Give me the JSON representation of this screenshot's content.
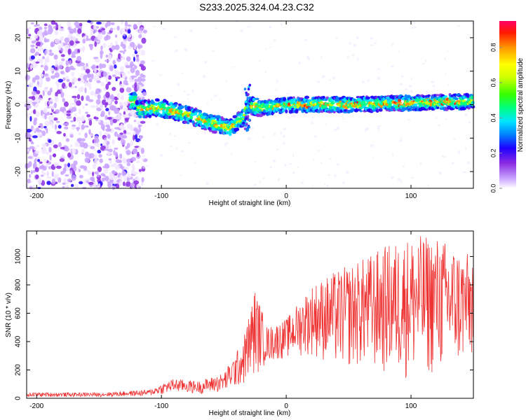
{
  "title": "S233.2025.324.04.23.C32",
  "colors": {
    "snr_line": "#ee3333",
    "spectrogram_cmap": [
      "#ffffff",
      "#c9a3ff",
      "#8a2be2",
      "#5a00ff",
      "#0000ff",
      "#00bfff",
      "#00ffcc",
      "#00ff00",
      "#ffff00",
      "#ff8c00",
      "#ff0000",
      "#ff0066"
    ]
  },
  "chart_data": [
    {
      "type": "heatmap",
      "name": "spectrogram",
      "xlabel": "Height of straight line (km)",
      "ylabel": "Frequency (Hz)",
      "xlim": [
        -208,
        150
      ],
      "ylim": [
        -25,
        25
      ],
      "xticks": [
        -200,
        -100,
        0,
        100
      ],
      "yticks": [
        -20,
        -10,
        0,
        10,
        20
      ],
      "description_points": {
        "ridge_center_hz": [
          {
            "x": -120,
            "y": -1.5
          },
          {
            "x": -100,
            "y": -1
          },
          {
            "x": -90,
            "y": -2
          },
          {
            "x": -75,
            "y": -3.5
          },
          {
            "x": -60,
            "y": -5.5
          },
          {
            "x": -45,
            "y": -7
          },
          {
            "x": -35,
            "y": -4
          },
          {
            "x": -30,
            "y": 0
          },
          {
            "x": -20,
            "y": -1
          },
          {
            "x": 0,
            "y": 0
          },
          {
            "x": 50,
            "y": 0
          },
          {
            "x": 100,
            "y": 0.5
          },
          {
            "x": 150,
            "y": 1
          }
        ]
      },
      "colorbar": {
        "label": "Normalized spectral amplitude",
        "range": [
          0.0,
          0.95
        ],
        "ticks": [
          0.0,
          0.2,
          0.4,
          0.6,
          0.8
        ]
      }
    },
    {
      "type": "line",
      "name": "snr",
      "xlabel": "Height of straight line (km)",
      "ylabel": "SNR (10 * v/v)",
      "xlim": [
        -208,
        150
      ],
      "ylim": [
        0,
        1180
      ],
      "xticks": [
        -200,
        -100,
        0,
        100
      ],
      "yticks": [
        0,
        200,
        400,
        600,
        800,
        1000
      ],
      "envelope": [
        {
          "x": -208,
          "lo": 10,
          "hi": 40
        },
        {
          "x": -150,
          "lo": 10,
          "hi": 40
        },
        {
          "x": -110,
          "lo": 15,
          "hi": 60
        },
        {
          "x": -90,
          "lo": 40,
          "hi": 140
        },
        {
          "x": -70,
          "lo": 30,
          "hi": 120
        },
        {
          "x": -50,
          "lo": 40,
          "hi": 180
        },
        {
          "x": -35,
          "lo": 80,
          "hi": 400
        },
        {
          "x": -25,
          "lo": 150,
          "hi": 780
        },
        {
          "x": -15,
          "lo": 250,
          "hi": 500
        },
        {
          "x": 0,
          "lo": 280,
          "hi": 560
        },
        {
          "x": 20,
          "lo": 300,
          "hi": 800
        },
        {
          "x": 40,
          "lo": 200,
          "hi": 900
        },
        {
          "x": 60,
          "lo": 200,
          "hi": 980
        },
        {
          "x": 80,
          "lo": 150,
          "hi": 1080
        },
        {
          "x": 100,
          "lo": 120,
          "hi": 1150
        },
        {
          "x": 120,
          "lo": 150,
          "hi": 1150
        },
        {
          "x": 140,
          "lo": 200,
          "hi": 1050
        },
        {
          "x": 150,
          "lo": 250,
          "hi": 1000
        }
      ]
    }
  ],
  "labels": {
    "top_xlabel": "Height of straight line (km)",
    "top_ylabel": "Frequency (Hz)",
    "bottom_xlabel": "Height of straight line (km)",
    "bottom_ylabel": "SNR (10 * v/v)",
    "colorbar_label": "Normalized spectral amplitude"
  }
}
